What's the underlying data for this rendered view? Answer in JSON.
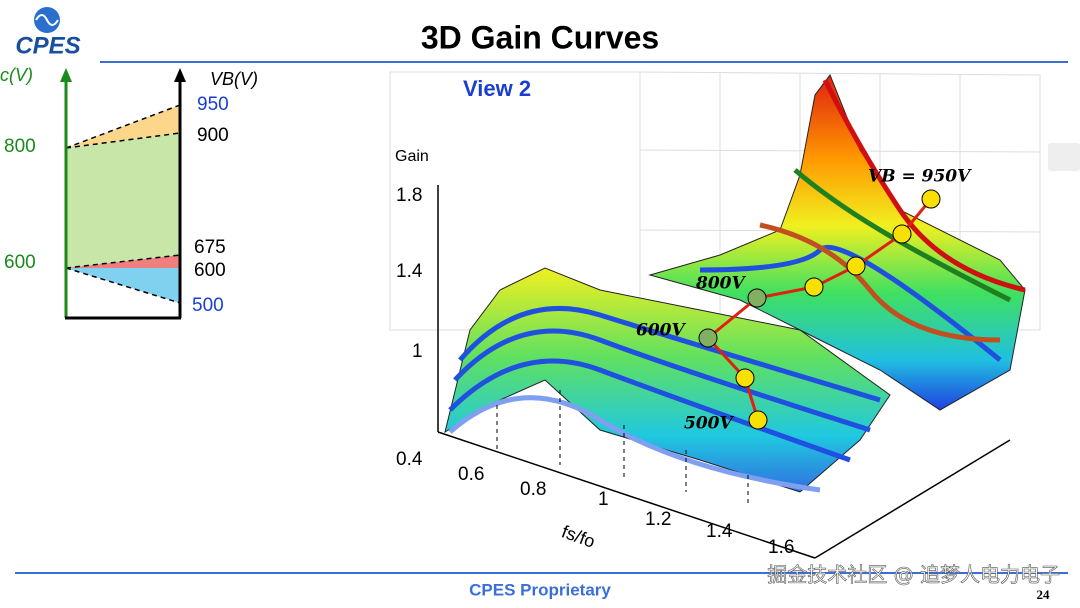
{
  "header": {
    "logo": "CPES",
    "title": "3D Gain Curves"
  },
  "left_diagram": {
    "left_axis_label": "c(V)",
    "right_axis_label": "VB(V)",
    "left_levels": [
      "800",
      "600"
    ],
    "right_levels": [
      "950",
      "900",
      "675",
      "600",
      "500"
    ]
  },
  "plot": {
    "view": "View 2",
    "z_label": "Gain",
    "z_ticks": [
      "1.8",
      "1.4",
      "1",
      "0.4"
    ],
    "x_label": "fs/fo",
    "x_ticks": [
      "0.6",
      "0.8",
      "1",
      "1.2",
      "1.4",
      "1.6"
    ],
    "annotations": [
      "VB = 950V",
      "800V",
      "600V",
      "500V"
    ]
  },
  "footer": {
    "note": "CPES Proprietary",
    "page": "24",
    "watermark": "掘金技术社区 @ 追梦人电力电子"
  }
}
